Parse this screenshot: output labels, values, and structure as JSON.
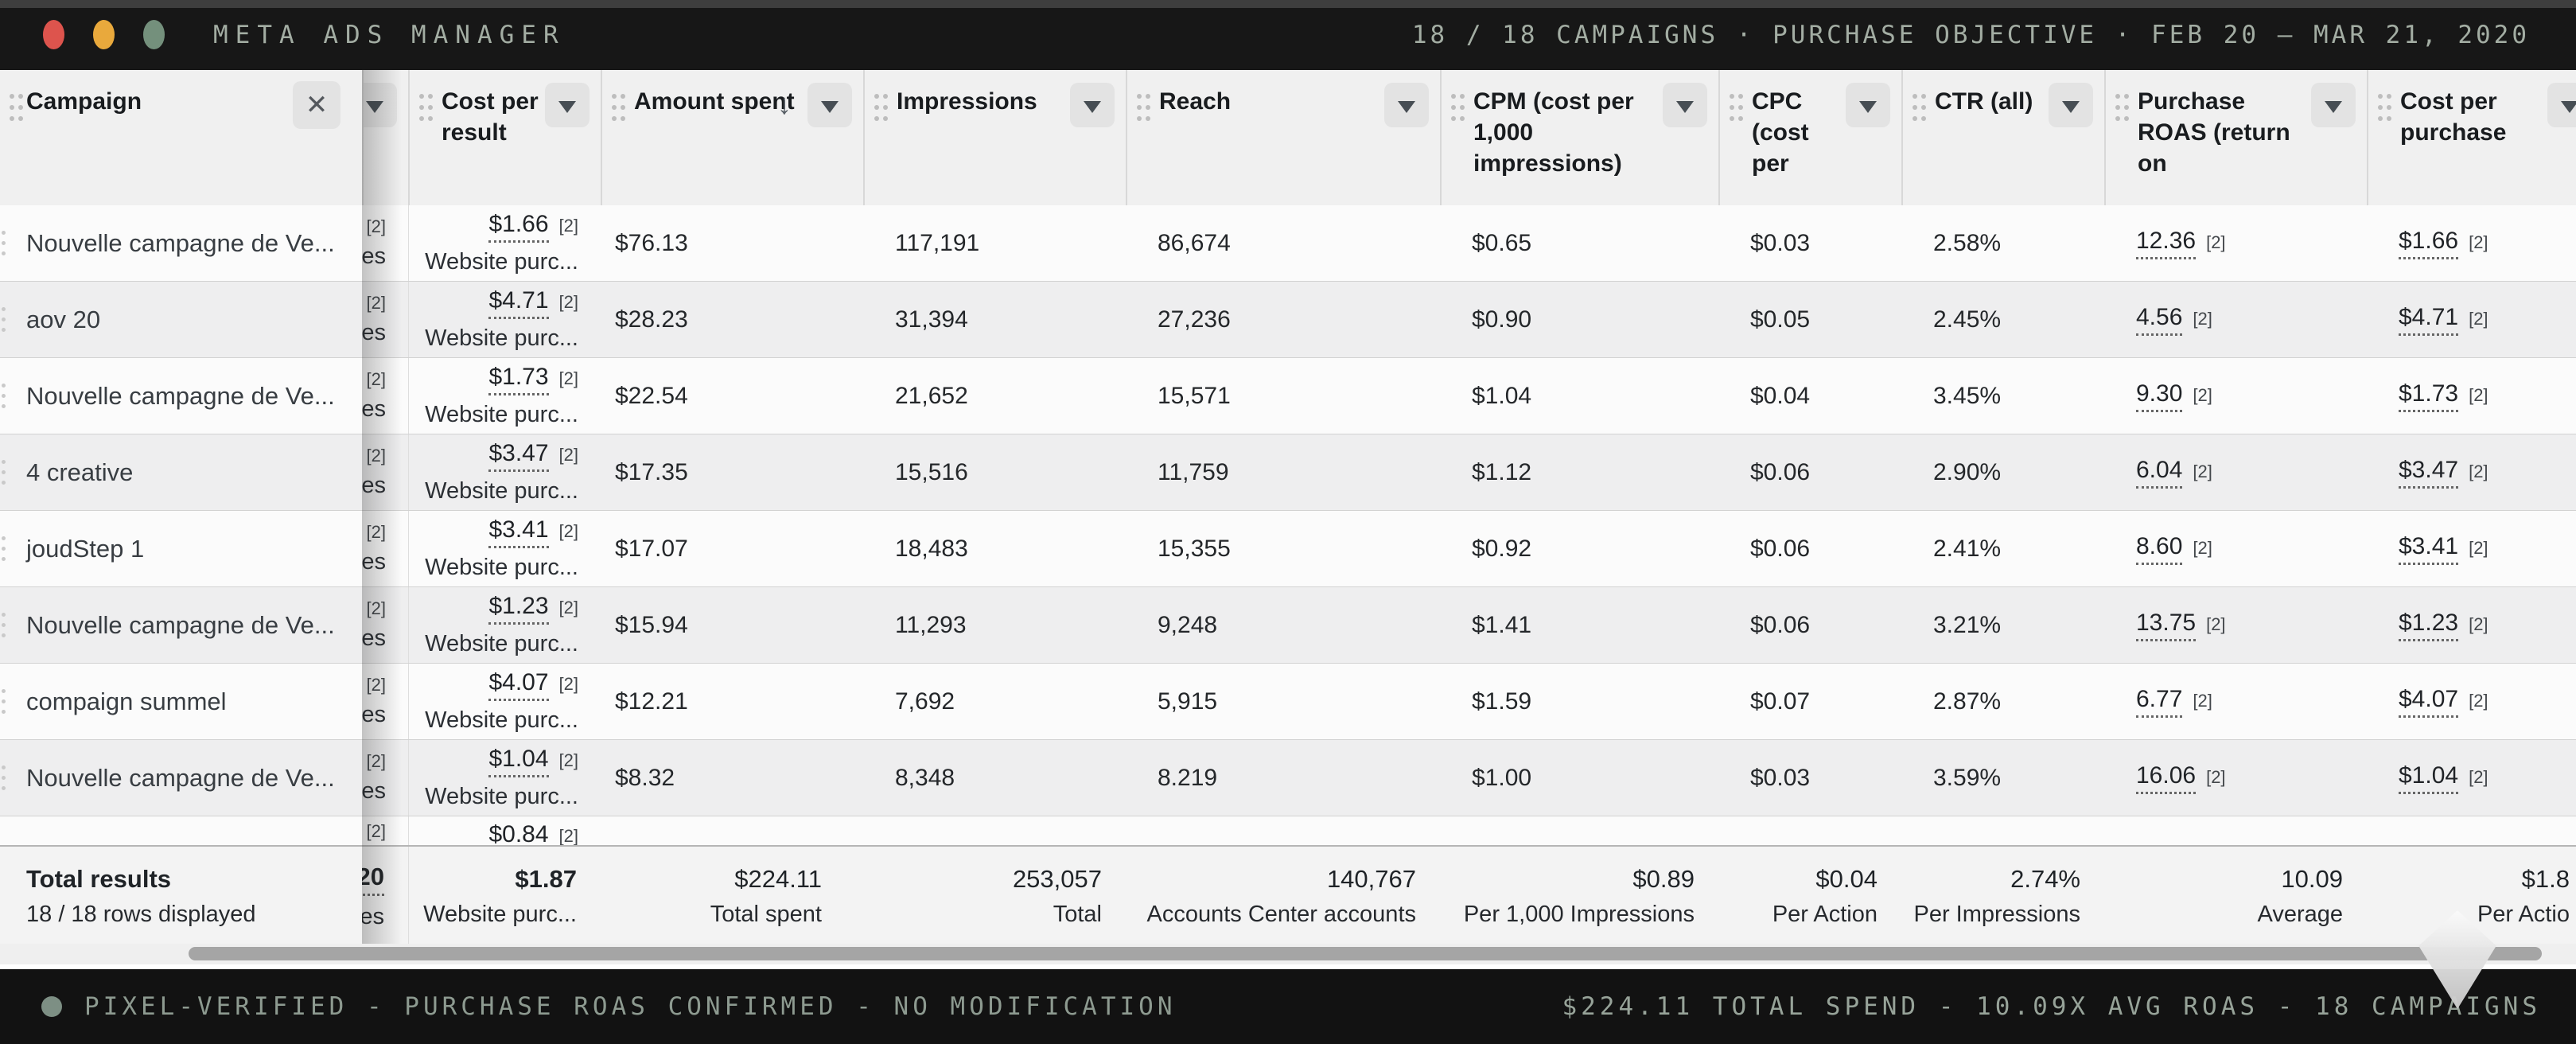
{
  "window": {
    "title": "META ADS MANAGER",
    "status_right": "18 / 18 CAMPAIGNS · PURCHASE OBJECTIVE · FEB 20 – MAR 21, 2020"
  },
  "colors": {
    "topbar_bg": "#171717",
    "accent_text": "#a3ada3",
    "light_close": "#dd544d",
    "light_minimize": "#e9a93c",
    "light_zoom": "#74907c",
    "row_alt": "#eeeeef",
    "header_bg": "#f0f0f0"
  },
  "table": {
    "columns": [
      {
        "id": "campaign",
        "label": "Campaign",
        "close": true
      },
      {
        "id": "results",
        "label": "",
        "menu": "clipL"
      },
      {
        "id": "cost_per_result",
        "label": "Cost per result",
        "menu": true
      },
      {
        "id": "amount_spent",
        "label": "Amount spent",
        "menu": true,
        "sorted": "↓"
      },
      {
        "id": "impressions",
        "label": "Impressions",
        "menu": true
      },
      {
        "id": "reach",
        "label": "Reach",
        "menu": true
      },
      {
        "id": "cpm",
        "label": "CPM (cost per 1,000 impressions)",
        "menu": true
      },
      {
        "id": "cpc",
        "label": "CPC (cost per",
        "menu": true
      },
      {
        "id": "ctr",
        "label": "CTR (all)",
        "menu": true
      },
      {
        "id": "roas",
        "label": "Purchase ROAS (return on",
        "menu": true
      },
      {
        "id": "cost_per_purchase",
        "label": "Cost per purchase",
        "menu": "clipR"
      }
    ],
    "marks": {
      "reference": "[2]",
      "results_tail": "es",
      "result_type": "Website purc..."
    },
    "rows": [
      {
        "name": "Nouvelle campagne de Ve...",
        "cost_per_result": "$1.66",
        "amount_spent": "$76.13",
        "impressions": "117,191",
        "reach": "86,674",
        "cpm": "$0.65",
        "cpc": "$0.03",
        "ctr": "2.58%",
        "roas": "12.36",
        "cost_per_purchase": "$1.66"
      },
      {
        "name": "aov 20",
        "cost_per_result": "$4.71",
        "amount_spent": "$28.23",
        "impressions": "31,394",
        "reach": "27,236",
        "cpm": "$0.90",
        "cpc": "$0.05",
        "ctr": "2.45%",
        "roas": "4.56",
        "cost_per_purchase": "$4.71"
      },
      {
        "name": "Nouvelle campagne de Ve...",
        "cost_per_result": "$1.73",
        "amount_spent": "$22.54",
        "impressions": "21,652",
        "reach": "15,571",
        "cpm": "$1.04",
        "cpc": "$0.04",
        "ctr": "3.45%",
        "roas": "9.30",
        "cost_per_purchase": "$1.73"
      },
      {
        "name": "4 creative",
        "cost_per_result": "$3.47",
        "amount_spent": "$17.35",
        "impressions": "15,516",
        "reach": "11,759",
        "cpm": "$1.12",
        "cpc": "$0.06",
        "ctr": "2.90%",
        "roas": "6.04",
        "cost_per_purchase": "$3.47"
      },
      {
        "name": "joudStep 1",
        "cost_per_result": "$3.41",
        "amount_spent": "$17.07",
        "impressions": "18,483",
        "reach": "15,355",
        "cpm": "$0.92",
        "cpc": "$0.06",
        "ctr": "2.41%",
        "roas": "8.60",
        "cost_per_purchase": "$3.41"
      },
      {
        "name": "Nouvelle campagne de Ve...",
        "cost_per_result": "$1.23",
        "amount_spent": "$15.94",
        "impressions": "11,293",
        "reach": "9,248",
        "cpm": "$1.41",
        "cpc": "$0.06",
        "ctr": "3.21%",
        "roas": "13.75",
        "cost_per_purchase": "$1.23"
      },
      {
        "name": "compaign summel",
        "cost_per_result": "$4.07",
        "amount_spent": "$12.21",
        "impressions": "7,692",
        "reach": "5,915",
        "cpm": "$1.59",
        "cpc": "$0.07",
        "ctr": "2.87%",
        "roas": "6.77",
        "cost_per_purchase": "$4.07"
      },
      {
        "name": "Nouvelle campagne de Ve...",
        "cost_per_result": "$1.04",
        "amount_spent": "$8.32",
        "impressions": "8,348",
        "reach": "8.219",
        "cpm": "$1.00",
        "cpc": "$0.03",
        "ctr": "3.59%",
        "roas": "16.06",
        "cost_per_purchase": "$1.04"
      }
    ],
    "partial_row": {
      "results_reference": "[2]",
      "cost_per_result": "$0.84",
      "reference": "[2]"
    },
    "totals": {
      "campaign": [
        "Total results",
        "18 / 18 rows displayed"
      ],
      "results": [
        "20",
        "es"
      ],
      "cost_per_result": [
        "$1.87",
        "Website purc..."
      ],
      "amount_spent": [
        "$224.11",
        "Total spent"
      ],
      "impressions": [
        "253,057",
        "Total"
      ],
      "reach": [
        "140,767",
        "Accounts Center accounts"
      ],
      "cpm": [
        "$0.89",
        "Per 1,000 Impressions"
      ],
      "cpc": [
        "$0.04",
        "Per Action"
      ],
      "ctr": [
        "2.74%",
        "Per Impressions"
      ],
      "roas": [
        "10.09",
        "Average"
      ],
      "cost_per_purchase": [
        "$1.8",
        "Per Actio"
      ]
    }
  },
  "statusbar": {
    "left": "PIXEL-VERIFIED - PURCHASE ROAS CONFIRMED - NO MODIFICATION",
    "right": "$224.11 TOTAL SPEND - 10.09X AVG ROAS - 18 CAMPAIGNS"
  }
}
